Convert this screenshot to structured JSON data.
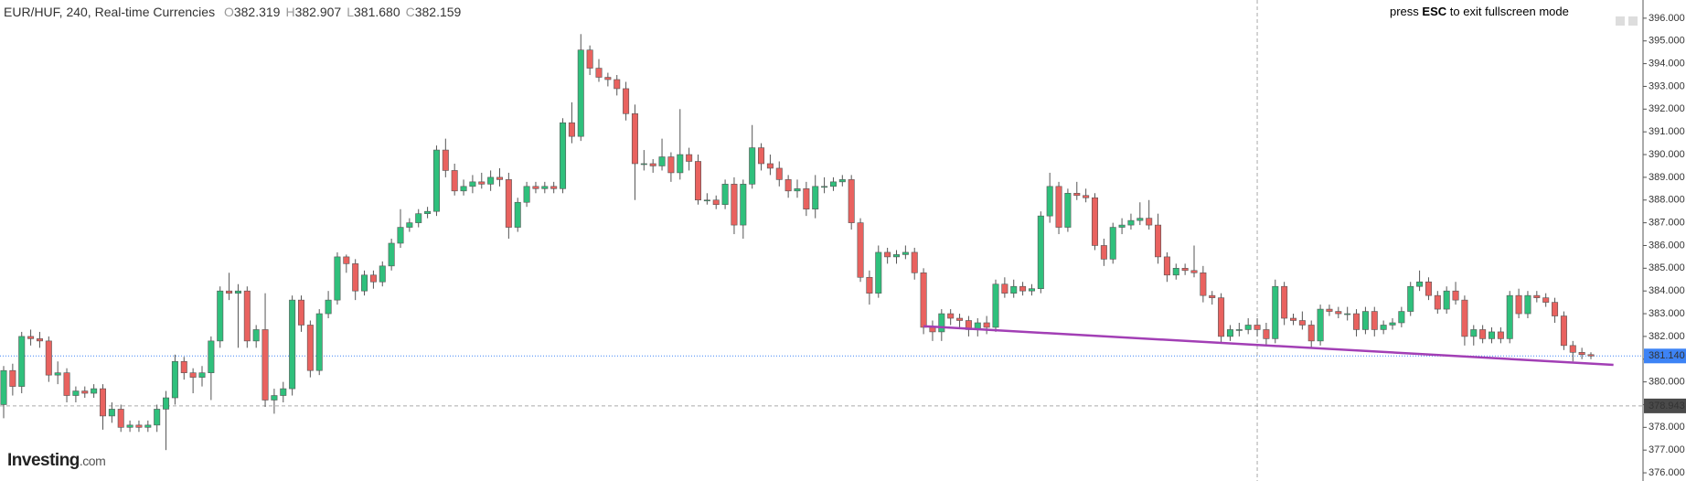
{
  "chart_data": {
    "type": "candlestick",
    "title": "EUR/HUF, 240, Real-time Currencies",
    "header_values": [
      {
        "key": "O",
        "value": "382.319"
      },
      {
        "key": "H",
        "value": "382.907"
      },
      {
        "key": "L",
        "value": "381.680"
      },
      {
        "key": "C",
        "value": "382.159"
      }
    ],
    "notice": [
      "press",
      "ESC",
      "to exit fullscreen mode"
    ],
    "logo": {
      "name": "Investing",
      "suffix": ".com"
    },
    "up_color": "#2fc07c",
    "down_color": "#e9625f",
    "ylim": [
      375.64,
      396.8
    ],
    "yticks": [
      {
        "value": 376,
        "label": "376.000"
      },
      {
        "value": 377,
        "label": "377.000"
      },
      {
        "value": 378,
        "label": "378.000"
      },
      {
        "value": 379,
        "label": "379.000"
      },
      {
        "value": 380,
        "label": "380.000"
      },
      {
        "value": 381,
        "label": "381.000"
      },
      {
        "value": 382,
        "label": "382.000"
      },
      {
        "value": 383,
        "label": "383.000"
      },
      {
        "value": 384,
        "label": "384.000"
      },
      {
        "value": 385,
        "label": "385.000"
      },
      {
        "value": 386,
        "label": "386.000"
      },
      {
        "value": 387,
        "label": "387.000"
      },
      {
        "value": 388,
        "label": "388.000"
      },
      {
        "value": 389,
        "label": "389.000"
      },
      {
        "value": 390,
        "label": "390.000"
      },
      {
        "value": 391,
        "label": "391.000"
      },
      {
        "value": 392,
        "label": "392.000"
      },
      {
        "value": 393,
        "label": "393.000"
      },
      {
        "value": 394,
        "label": "394.000"
      },
      {
        "value": 395,
        "label": "395.000"
      },
      {
        "value": 396,
        "label": "396.000"
      }
    ],
    "last_price": {
      "value": 381.14,
      "label": "381.140",
      "color": "#3d83f5"
    },
    "crosshair": {
      "x": 139,
      "y": 378.943,
      "label": "378.943"
    },
    "trendline": {
      "x": [
        102,
        178.5
      ],
      "y": [
        382.45,
        380.75
      ],
      "color": "#a23fb5"
    },
    "ohlc": [
      [
        379.0,
        380.7,
        378.4,
        380.5
      ],
      [
        380.5,
        380.8,
        379.4,
        379.8
      ],
      [
        379.8,
        382.2,
        379.5,
        382.0
      ],
      [
        382.0,
        382.3,
        381.6,
        381.9
      ],
      [
        381.9,
        382.2,
        381.5,
        381.8
      ],
      [
        381.8,
        382.0,
        380.0,
        380.3
      ],
      [
        380.3,
        380.9,
        379.9,
        380.4
      ],
      [
        380.4,
        380.6,
        379.1,
        379.4
      ],
      [
        379.4,
        379.8,
        379.1,
        379.6
      ],
      [
        379.6,
        379.8,
        379.3,
        379.5
      ],
      [
        379.5,
        379.9,
        379.3,
        379.7
      ],
      [
        379.7,
        379.9,
        377.9,
        378.5
      ],
      [
        378.5,
        379.1,
        378.2,
        378.8
      ],
      [
        378.8,
        379.0,
        377.8,
        378.0
      ],
      [
        378.0,
        378.3,
        377.8,
        378.1
      ],
      [
        378.1,
        378.3,
        377.8,
        378.0
      ],
      [
        378.0,
        378.3,
        377.8,
        378.1
      ],
      [
        378.1,
        379.0,
        377.8,
        378.8
      ],
      [
        378.8,
        379.6,
        377.0,
        379.3
      ],
      [
        379.3,
        381.2,
        379.0,
        380.9
      ],
      [
        380.9,
        381.1,
        380.1,
        380.4
      ],
      [
        380.4,
        380.6,
        379.5,
        380.2
      ],
      [
        380.2,
        380.7,
        379.8,
        380.4
      ],
      [
        380.4,
        382.0,
        379.2,
        381.8
      ],
      [
        381.8,
        384.2,
        381.5,
        384.0
      ],
      [
        384.0,
        384.8,
        383.6,
        383.9
      ],
      [
        383.9,
        384.3,
        381.5,
        384.0
      ],
      [
        384.0,
        384.2,
        381.5,
        381.8
      ],
      [
        381.8,
        382.5,
        381.5,
        382.3
      ],
      [
        382.3,
        383.9,
        378.9,
        379.2
      ],
      [
        379.2,
        379.7,
        378.6,
        379.4
      ],
      [
        379.4,
        380.0,
        379.1,
        379.7
      ],
      [
        379.7,
        383.8,
        379.4,
        383.6
      ],
      [
        383.6,
        383.8,
        382.2,
        382.5
      ],
      [
        382.5,
        382.7,
        380.2,
        380.5
      ],
      [
        380.5,
        383.2,
        380.3,
        383.0
      ],
      [
        383.0,
        384.0,
        382.8,
        383.6
      ],
      [
        383.6,
        385.7,
        383.4,
        385.5
      ],
      [
        385.5,
        385.6,
        384.8,
        385.2
      ],
      [
        385.2,
        385.4,
        383.6,
        384.0
      ],
      [
        384.0,
        384.9,
        383.8,
        384.7
      ],
      [
        384.7,
        384.9,
        384.1,
        384.4
      ],
      [
        384.4,
        385.3,
        384.2,
        385.1
      ],
      [
        385.1,
        386.3,
        384.9,
        386.1
      ],
      [
        386.1,
        387.6,
        385.9,
        386.8
      ],
      [
        386.8,
        387.2,
        386.6,
        387.0
      ],
      [
        387.0,
        387.6,
        386.8,
        387.4
      ],
      [
        387.4,
        387.7,
        387.2,
        387.5
      ],
      [
        387.5,
        390.4,
        387.3,
        390.2
      ],
      [
        390.2,
        390.7,
        389.0,
        389.3
      ],
      [
        389.3,
        389.6,
        388.2,
        388.4
      ],
      [
        388.4,
        388.9,
        388.2,
        388.6
      ],
      [
        388.6,
        389.1,
        388.3,
        388.8
      ],
      [
        388.8,
        389.2,
        388.5,
        388.7
      ],
      [
        388.7,
        389.3,
        388.4,
        389.0
      ],
      [
        389.0,
        389.4,
        388.6,
        388.9
      ],
      [
        388.9,
        389.2,
        386.3,
        386.8
      ],
      [
        386.8,
        388.1,
        386.6,
        387.9
      ],
      [
        387.9,
        388.8,
        387.7,
        388.6
      ],
      [
        388.6,
        388.8,
        388.3,
        388.5
      ],
      [
        388.5,
        388.8,
        388.3,
        388.6
      ],
      [
        388.6,
        388.8,
        388.3,
        388.5
      ],
      [
        388.5,
        391.6,
        388.3,
        391.4
      ],
      [
        391.4,
        392.3,
        390.5,
        390.8
      ],
      [
        390.8,
        395.3,
        390.6,
        394.6
      ],
      [
        394.6,
        394.8,
        393.5,
        393.8
      ],
      [
        393.8,
        394.2,
        393.2,
        393.4
      ],
      [
        393.4,
        393.6,
        393.0,
        393.3
      ],
      [
        393.3,
        393.5,
        392.6,
        392.9
      ],
      [
        392.9,
        393.2,
        391.5,
        391.8
      ],
      [
        391.8,
        392.2,
        388.0,
        389.6
      ],
      [
        389.6,
        390.2,
        389.3,
        389.6
      ],
      [
        389.6,
        389.8,
        389.2,
        389.5
      ],
      [
        389.5,
        390.7,
        389.3,
        389.9
      ],
      [
        389.9,
        390.1,
        388.8,
        389.2
      ],
      [
        389.2,
        392.0,
        388.9,
        390.0
      ],
      [
        390.0,
        390.3,
        389.3,
        389.7
      ],
      [
        389.7,
        390.0,
        387.8,
        388.0
      ],
      [
        388.0,
        388.3,
        387.8,
        388.0
      ],
      [
        388.0,
        388.2,
        387.6,
        387.8
      ],
      [
        387.8,
        388.9,
        387.6,
        388.7
      ],
      [
        388.7,
        389.0,
        386.5,
        386.9
      ],
      [
        386.9,
        388.9,
        386.3,
        388.7
      ],
      [
        388.7,
        391.3,
        388.5,
        390.3
      ],
      [
        390.3,
        390.5,
        389.3,
        389.6
      ],
      [
        389.6,
        390.0,
        389.1,
        389.4
      ],
      [
        389.4,
        389.7,
        388.6,
        388.9
      ],
      [
        388.9,
        389.1,
        388.1,
        388.4
      ],
      [
        388.4,
        388.9,
        388.1,
        388.5
      ],
      [
        388.5,
        388.8,
        387.3,
        387.6
      ],
      [
        387.6,
        389.1,
        387.2,
        388.6
      ],
      [
        388.6,
        389.0,
        388.3,
        388.6
      ],
      [
        388.6,
        389.0,
        388.4,
        388.8
      ],
      [
        388.8,
        389.1,
        388.6,
        388.9
      ],
      [
        388.9,
        389.1,
        386.7,
        387.0
      ],
      [
        387.0,
        387.2,
        384.4,
        384.6
      ],
      [
        384.6,
        384.9,
        383.4,
        383.9
      ],
      [
        383.9,
        386.0,
        383.7,
        385.7
      ],
      [
        385.7,
        385.9,
        385.2,
        385.5
      ],
      [
        385.5,
        385.8,
        385.2,
        385.6
      ],
      [
        385.6,
        386.0,
        385.4,
        385.7
      ],
      [
        385.7,
        385.9,
        384.5,
        384.8
      ],
      [
        384.8,
        385.0,
        382.1,
        382.4
      ],
      [
        382.4,
        382.7,
        381.8,
        382.2
      ],
      [
        382.2,
        383.2,
        381.8,
        383.0
      ],
      [
        383.0,
        383.2,
        382.5,
        382.8
      ],
      [
        382.8,
        383.0,
        382.4,
        382.7
      ],
      [
        382.7,
        382.9,
        382.0,
        382.3
      ],
      [
        382.3,
        382.8,
        382.0,
        382.6
      ],
      [
        382.6,
        382.9,
        382.1,
        382.4
      ],
      [
        382.4,
        384.5,
        382.2,
        384.3
      ],
      [
        384.3,
        384.6,
        383.7,
        383.9
      ],
      [
        383.9,
        384.5,
        383.7,
        384.2
      ],
      [
        384.2,
        384.4,
        383.8,
        384.0
      ],
      [
        384.0,
        384.3,
        383.8,
        384.1
      ],
      [
        384.1,
        387.5,
        383.9,
        387.3
      ],
      [
        387.3,
        389.2,
        387.0,
        388.6
      ],
      [
        388.6,
        388.8,
        386.5,
        386.8
      ],
      [
        386.8,
        388.5,
        386.6,
        388.3
      ],
      [
        388.3,
        388.8,
        388.0,
        388.2
      ],
      [
        388.2,
        388.5,
        387.9,
        388.1
      ],
      [
        388.1,
        388.3,
        385.8,
        386.0
      ],
      [
        386.0,
        386.3,
        385.1,
        385.4
      ],
      [
        385.4,
        387.0,
        385.2,
        386.8
      ],
      [
        386.8,
        387.2,
        386.5,
        386.9
      ],
      [
        386.9,
        387.4,
        386.7,
        387.1
      ],
      [
        387.1,
        387.9,
        386.9,
        387.2
      ],
      [
        387.2,
        388.0,
        386.7,
        386.9
      ],
      [
        386.9,
        387.4,
        385.2,
        385.5
      ],
      [
        385.5,
        385.7,
        384.4,
        384.7
      ],
      [
        384.7,
        385.2,
        384.5,
        385.0
      ],
      [
        385.0,
        385.2,
        384.7,
        384.9
      ],
      [
        384.9,
        386.0,
        384.6,
        384.8
      ],
      [
        384.8,
        385.1,
        383.5,
        383.8
      ],
      [
        383.8,
        384.0,
        383.4,
        383.7
      ],
      [
        383.7,
        383.9,
        381.7,
        382.0
      ],
      [
        382.0,
        382.5,
        381.8,
        382.3
      ],
      [
        382.3,
        382.6,
        382.0,
        382.3
      ],
      [
        382.3,
        382.8,
        382.1,
        382.5
      ],
      [
        382.5,
        382.8,
        382.0,
        382.3
      ],
      [
        382.3,
        382.6,
        381.6,
        381.9
      ],
      [
        381.9,
        384.5,
        381.7,
        384.2
      ],
      [
        384.2,
        384.4,
        382.5,
        382.8
      ],
      [
        382.8,
        383.0,
        382.5,
        382.7
      ],
      [
        382.7,
        383.1,
        382.3,
        382.5
      ],
      [
        382.5,
        382.7,
        381.5,
        381.8
      ],
      [
        381.8,
        383.4,
        381.6,
        383.2
      ],
      [
        383.2,
        383.4,
        382.9,
        383.1
      ],
      [
        383.1,
        383.3,
        382.8,
        383.0
      ],
      [
        383.0,
        383.3,
        382.7,
        383.0
      ],
      [
        383.0,
        383.2,
        382.0,
        382.3
      ],
      [
        382.3,
        383.3,
        382.1,
        383.1
      ],
      [
        383.1,
        383.3,
        382.0,
        382.3
      ],
      [
        382.3,
        382.7,
        382.1,
        382.5
      ],
      [
        382.5,
        382.8,
        382.3,
        382.6
      ],
      [
        382.6,
        383.3,
        382.4,
        383.1
      ],
      [
        383.1,
        384.4,
        382.9,
        384.2
      ],
      [
        384.2,
        384.9,
        384.0,
        384.4
      ],
      [
        384.4,
        384.6,
        383.6,
        383.8
      ],
      [
        383.8,
        384.0,
        383.0,
        383.2
      ],
      [
        383.2,
        384.2,
        383.0,
        384.0
      ],
      [
        384.0,
        384.4,
        383.4,
        383.6
      ],
      [
        383.6,
        383.8,
        381.6,
        382.0
      ],
      [
        382.0,
        382.5,
        381.6,
        382.3
      ],
      [
        382.3,
        382.5,
        381.7,
        381.9
      ],
      [
        381.9,
        382.4,
        381.7,
        382.2
      ],
      [
        382.2,
        382.4,
        381.7,
        381.9
      ],
      [
        381.9,
        384.0,
        381.7,
        383.8
      ],
      [
        383.8,
        384.1,
        382.8,
        383.0
      ],
      [
        383.0,
        384.0,
        382.8,
        383.8
      ],
      [
        383.8,
        384.0,
        383.5,
        383.7
      ],
      [
        383.7,
        383.9,
        383.3,
        383.5
      ],
      [
        383.5,
        383.7,
        382.6,
        382.9
      ],
      [
        382.9,
        383.1,
        381.4,
        381.6
      ],
      [
        381.6,
        381.8,
        380.9,
        381.3
      ],
      [
        381.3,
        381.5,
        381.0,
        381.2
      ],
      [
        381.2,
        381.3,
        381.0,
        381.14
      ]
    ]
  }
}
